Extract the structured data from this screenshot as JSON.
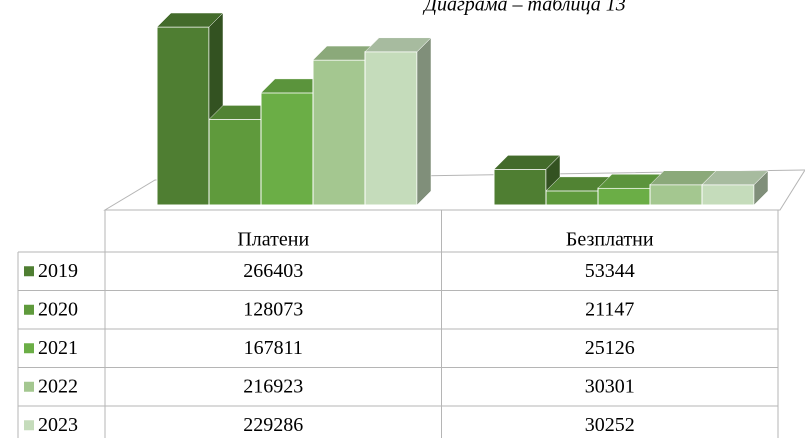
{
  "chart_data": {
    "type": "bar",
    "title": "Диаграма – таблица 13",
    "categories": [
      "Платени",
      "Безплатни"
    ],
    "series": [
      {
        "name": "2019",
        "color": "#4f7e32",
        "values": [
          266403,
          53344
        ]
      },
      {
        "name": "2020",
        "color": "#5f9a3c",
        "values": [
          128073,
          21147
        ]
      },
      {
        "name": "2021",
        "color": "#6bae46",
        "values": [
          167811,
          25126
        ]
      },
      {
        "name": "2022",
        "color": "#a4c790",
        "values": [
          216923,
          30301
        ]
      },
      {
        "name": "2023",
        "color": "#c5dcbb",
        "values": [
          229286,
          30252
        ]
      }
    ]
  }
}
